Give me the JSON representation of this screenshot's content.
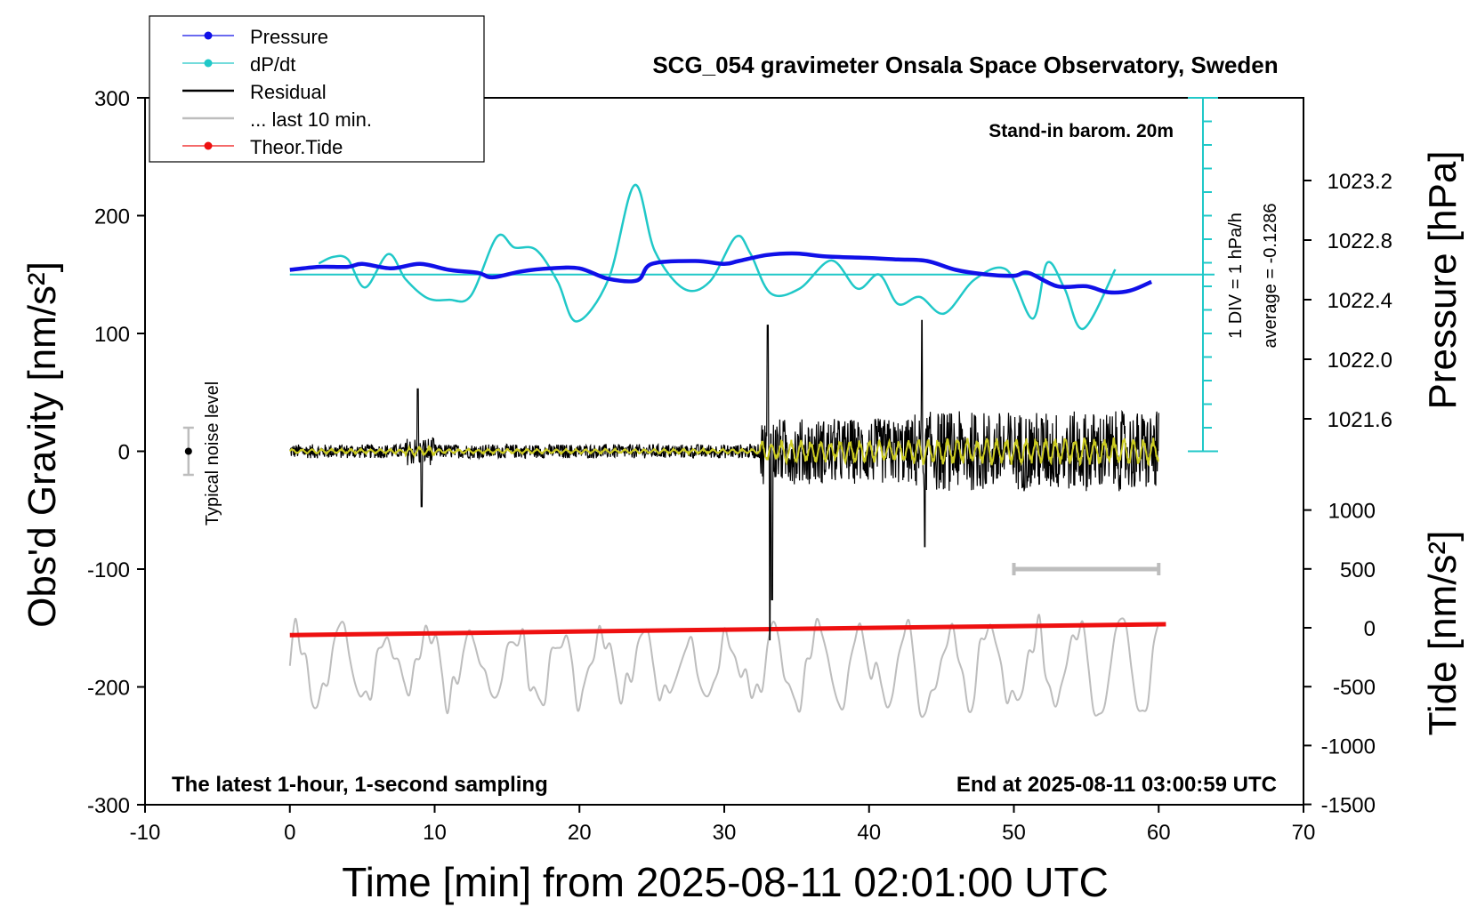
{
  "chart_data": {
    "type": "line",
    "title": "SCG_054 gravimeter Onsala Space Observatory, Sweden",
    "xlabel": "Time [min] from 2025-08-11 02:01:00 UTC",
    "ylabel_left": "Obs'd Gravity [nm/s²]",
    "ylabel_right_top": "Pressure [hPa]",
    "ylabel_right_bottom": "Tide [nm/s²]",
    "xlim": [
      -10,
      70
    ],
    "ylim": [
      -300,
      300
    ],
    "xticks": [
      "-10",
      "0",
      "10",
      "20",
      "30",
      "40",
      "50",
      "60",
      "70"
    ],
    "yticks_left": [
      "-300",
      "-200",
      "-100",
      "0",
      "100",
      "200",
      "300"
    ],
    "pressure_ticks": [
      "1021.6",
      "1022.0",
      "1022.4",
      "1022.8",
      "1023.2"
    ],
    "tide_ticks": [
      "-1500",
      "-1000",
      "-500",
      "0",
      "500",
      "1000"
    ],
    "legend": [
      {
        "label": "Pressure",
        "color": "#1010e8"
      },
      {
        "label": "dP/dt",
        "color": "#20c8c8"
      },
      {
        "label": "Residual",
        "color": "#000000"
      },
      {
        "label": "... last 10 min.",
        "color": "#bdbdbd"
      },
      {
        "label": "Theor.Tide",
        "color": "#ee1010"
      }
    ],
    "annotations": {
      "barometer": "Stand-in barom. 20m",
      "scale_note": "1 DIV = 1 hPa/h",
      "average": "average = -0.1286",
      "noise": "Typical noise level",
      "sampling": "The latest 1-hour, 1-second sampling",
      "end_time": "End at 2025-08-11 03:00:59 UTC"
    },
    "pressure_hpa": {
      "x": [
        0,
        2,
        4,
        5,
        7,
        9,
        11,
        13,
        14,
        16,
        18,
        20,
        22,
        24,
        25,
        28,
        30,
        31,
        33,
        35,
        37,
        40,
        42,
        44,
        46,
        48,
        50,
        51,
        53,
        55,
        56.5,
        58,
        59.5
      ],
      "values": [
        1022.6,
        1022.62,
        1022.62,
        1022.64,
        1022.61,
        1022.64,
        1022.6,
        1022.58,
        1022.55,
        1022.59,
        1022.61,
        1022.61,
        1022.54,
        1022.53,
        1022.64,
        1022.66,
        1022.64,
        1022.66,
        1022.7,
        1022.71,
        1022.69,
        1022.68,
        1022.67,
        1022.66,
        1022.6,
        1022.57,
        1022.56,
        1022.58,
        1022.49,
        1022.49,
        1022.45,
        1022.46,
        1022.52
      ]
    },
    "dPdt_hpa_per_h": {
      "baseline": 0,
      "x": [
        2,
        3,
        4,
        5.2,
        6.8,
        8,
        9.5,
        11,
        12.5,
        14.3,
        15.5,
        17,
        18.5,
        19.8,
        22,
        23.8,
        25.2,
        27.2,
        29,
        30.8,
        31.8,
        33.2,
        35.2,
        37.4,
        39.2,
        40.7,
        42,
        43.5,
        45.2,
        47.3,
        49.5,
        51.3,
        52.3,
        53.5,
        54.8,
        57
      ],
      "values": [
        0.47,
        0.75,
        0.65,
        -0.55,
        0.87,
        -0.2,
        -1.0,
        -1.07,
        -0.9,
        1.6,
        1.15,
        1.05,
        -0.3,
        -1.99,
        -0.2,
        3.79,
        1.0,
        -0.6,
        -0.3,
        1.6,
        0.9,
        -0.8,
        -0.6,
        0.6,
        -0.6,
        0.0,
        -1.25,
        -0.95,
        -1.65,
        -0.2,
        0.2,
        -1.87,
        0.5,
        -0.6,
        -2.3,
        0.22
      ]
    },
    "residual_nm_s2": {
      "x_range": [
        0,
        60
      ],
      "envelope_x": [
        0,
        8,
        8.8,
        9.2,
        10,
        32.5,
        33.0,
        33.6,
        34.5,
        40,
        43.5,
        43.8,
        44.5,
        50,
        60
      ],
      "envelope_values": [
        5,
        6,
        53,
        -47,
        8,
        8,
        107,
        -126,
        28,
        35,
        111,
        -81,
        55,
        45,
        42
      ]
    },
    "last_10_min_nm_s2": {
      "x_range": [
        0,
        60
      ],
      "min": -230,
      "max": -135
    },
    "theor_tide_nm_s2": {
      "x": [
        0,
        60.5
      ],
      "values": [
        -62,
        30
      ]
    },
    "noise_level": {
      "x": -7,
      "center": 0,
      "half_range": 20
    },
    "scale_bar_x": [
      50,
      60
    ]
  }
}
